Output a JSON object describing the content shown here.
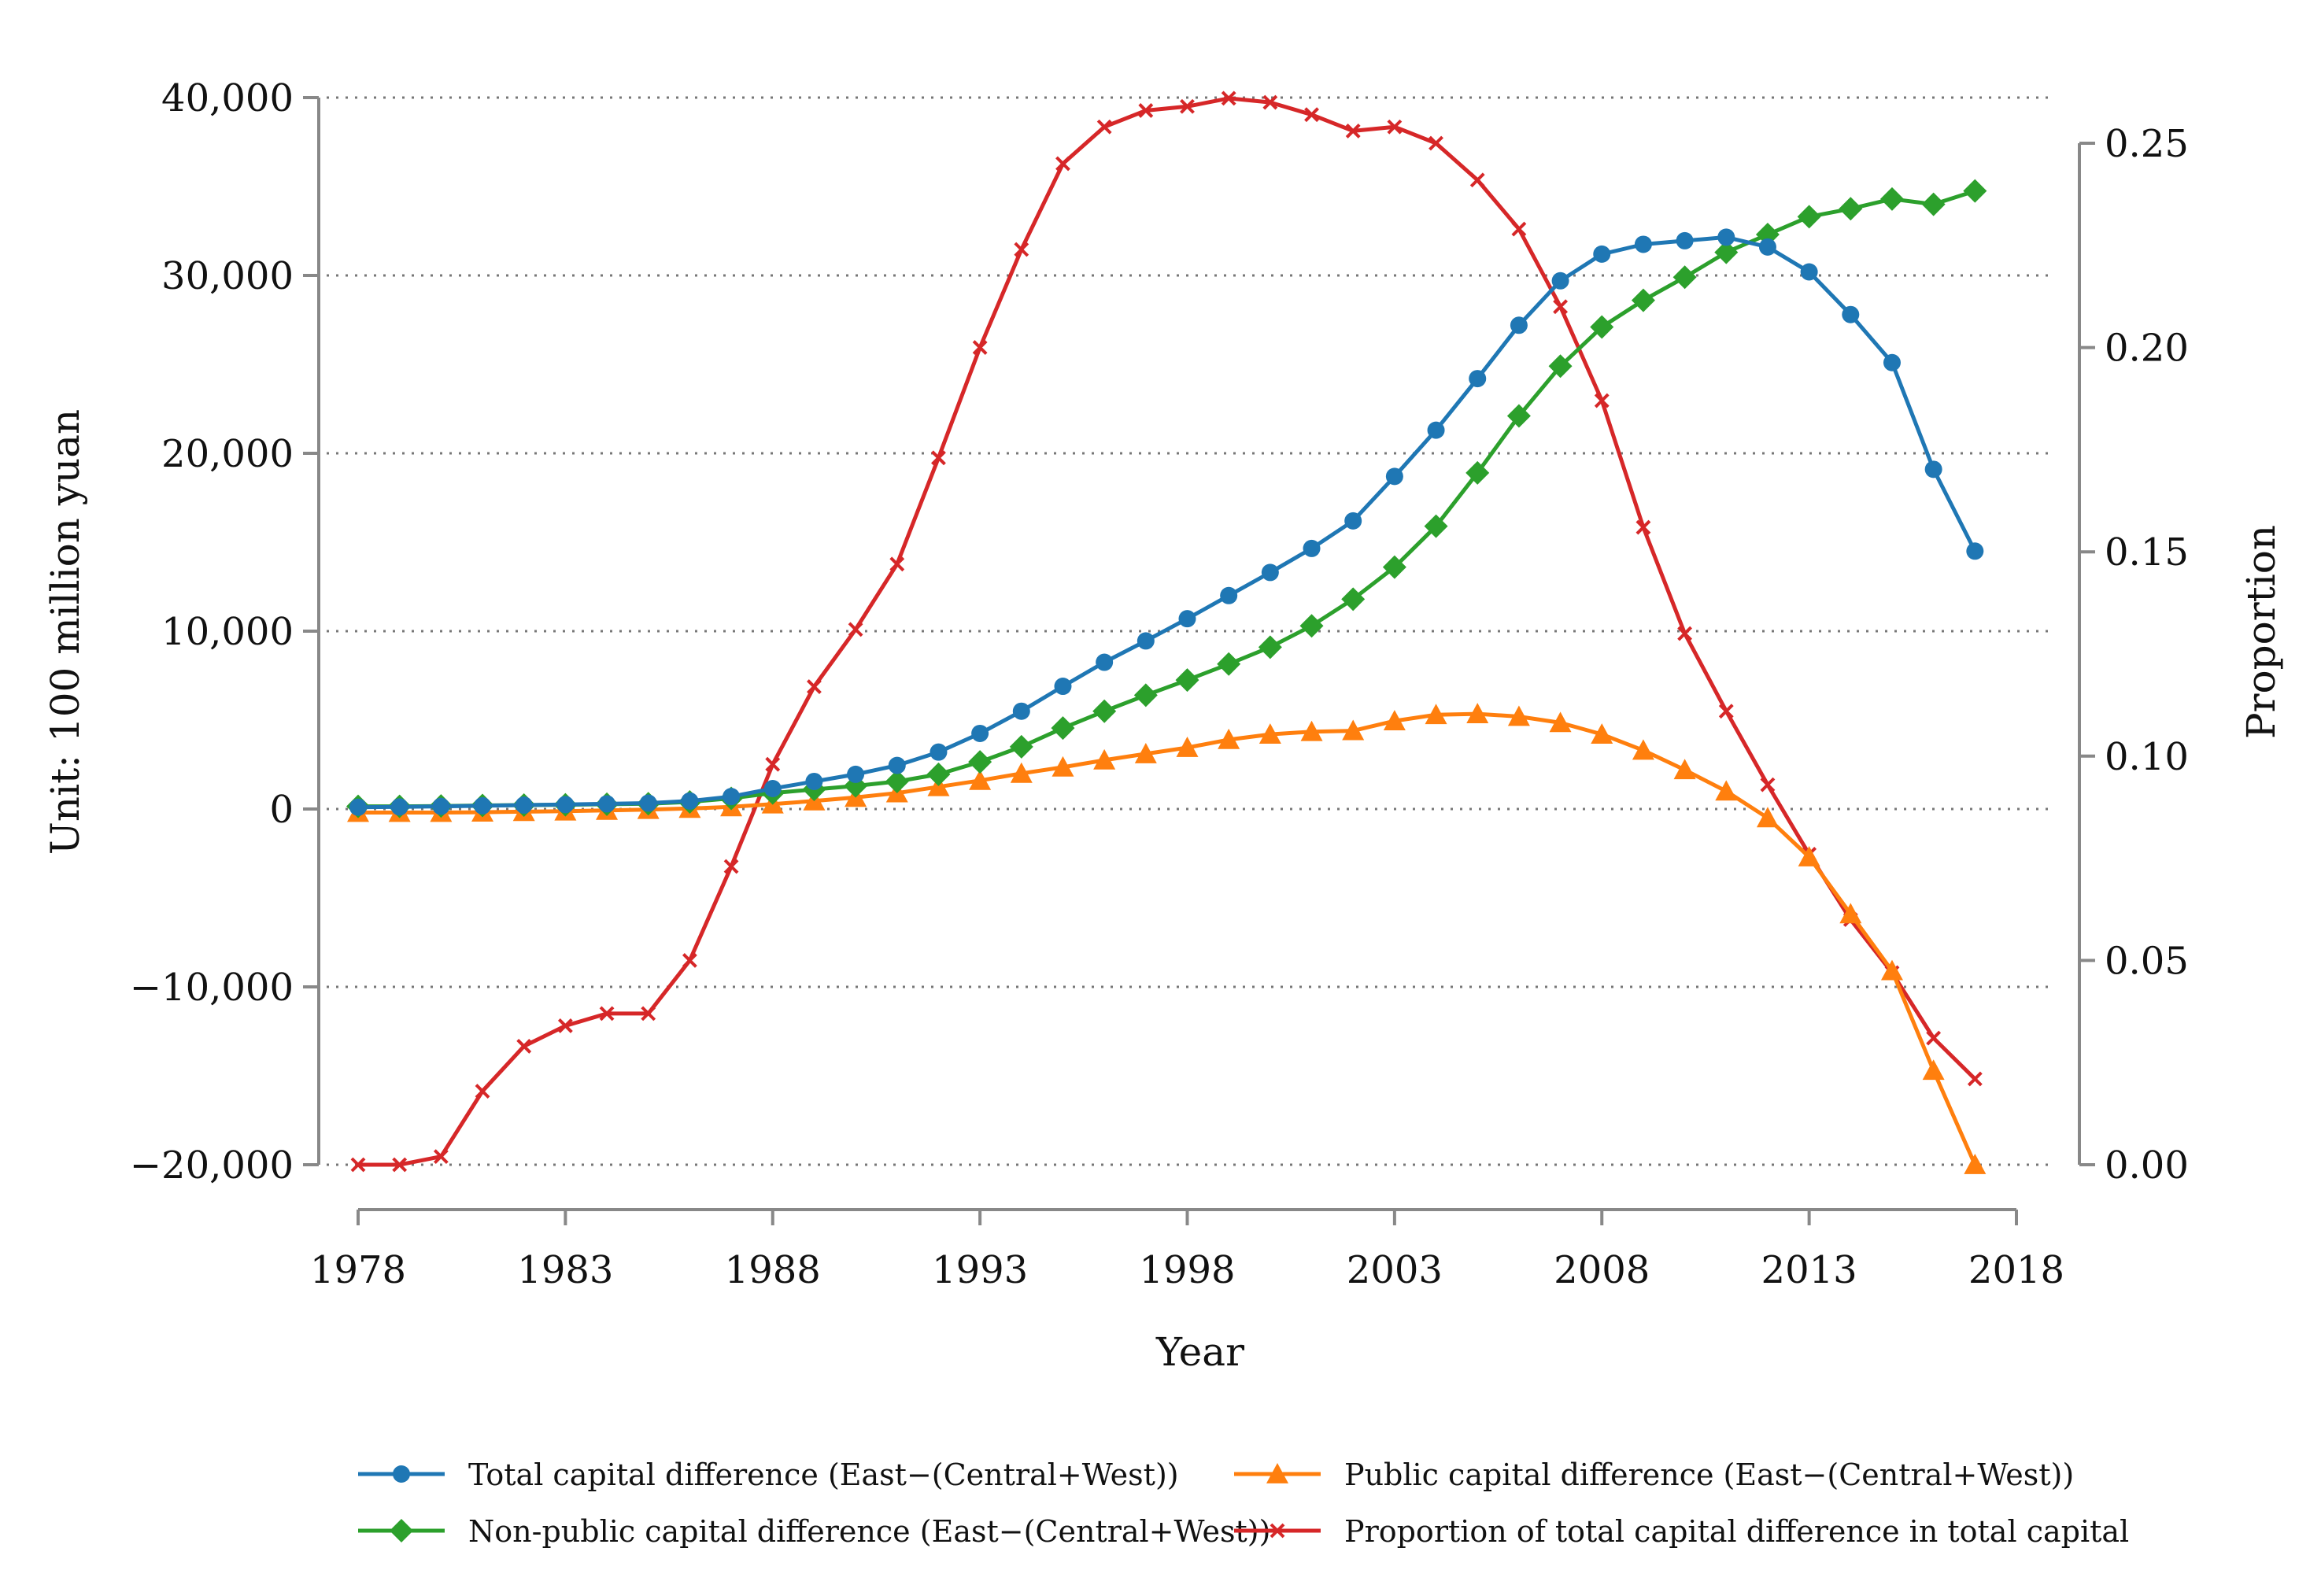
{
  "chart_data": {
    "type": "line",
    "title": "",
    "xlabel": "Year",
    "ylabel": "Unit: 100 million yuan",
    "y2label": "Proportion",
    "xlim": [
      1978,
      2018
    ],
    "ylim": [
      -20000,
      40000
    ],
    "y2lim": [
      0.0,
      0.262
    ],
    "xticks": [
      1978,
      1983,
      1988,
      1993,
      1998,
      2003,
      2008,
      2013,
      2018
    ],
    "xtick_labels": [
      "1978",
      "1983",
      "1988",
      "1993",
      "1998",
      "2003",
      "2008",
      "2013",
      "2018"
    ],
    "yticks": [
      -20000,
      -10000,
      0,
      10000,
      20000,
      30000,
      40000
    ],
    "ytick_labels": [
      "−20,000",
      "−10,000",
      "0",
      "10,000",
      "20,000",
      "30,000",
      "40,000"
    ],
    "y2ticks": [
      0.0,
      0.05,
      0.1,
      0.15,
      0.2,
      0.25
    ],
    "y2tick_labels": [
      "0.00",
      "0.05",
      "0.10",
      "0.15",
      "0.20",
      "0.25"
    ],
    "grid": "horizontal dotted",
    "legend_position": "bottom",
    "x": [
      1978,
      1979,
      1980,
      1981,
      1982,
      1983,
      1984,
      1985,
      1986,
      1987,
      1988,
      1989,
      1990,
      1991,
      1992,
      1993,
      1994,
      1995,
      1996,
      1997,
      1998,
      1999,
      2000,
      2001,
      2002,
      2003,
      2004,
      2005,
      2006,
      2007,
      2008,
      2009,
      2010,
      2011,
      2012,
      2013,
      2014,
      2015,
      2016,
      2017
    ],
    "series": [
      {
        "name": "Total capital difference (East−(Central+West))",
        "axis": "left",
        "color": "#1f77b4",
        "marker": "circle",
        "values": [
          100,
          120,
          150,
          180,
          220,
          250,
          290,
          330,
          450,
          700,
          1150,
          1550,
          1950,
          2450,
          3200,
          4250,
          5500,
          6900,
          8250,
          9450,
          10700,
          12000,
          13300,
          14650,
          16200,
          18700,
          21300,
          24200,
          27200,
          29700,
          31200,
          31750,
          31950,
          32150,
          31600,
          30200,
          27800,
          25100,
          19100,
          14500
        ]
      },
      {
        "name": "Public capital difference (East−(Central+West))",
        "axis": "left",
        "color": "#ff7f0e",
        "marker": "triangle",
        "values": [
          -200,
          -200,
          -200,
          -180,
          -150,
          -120,
          -80,
          -30,
          30,
          120,
          280,
          450,
          650,
          900,
          1250,
          1600,
          2000,
          2350,
          2750,
          3100,
          3450,
          3900,
          4200,
          4350,
          4400,
          4950,
          5300,
          5350,
          5200,
          4850,
          4200,
          3300,
          2200,
          1000,
          -500,
          -2700,
          -5900,
          -9100,
          -14700,
          -20000
        ]
      },
      {
        "name": "Non-public capital difference (East−(Central+West))",
        "axis": "left",
        "color": "#2ca02c",
        "marker": "diamond",
        "values": [
          150,
          150,
          170,
          200,
          220,
          240,
          270,
          300,
          400,
          600,
          900,
          1100,
          1300,
          1550,
          1950,
          2650,
          3500,
          4550,
          5500,
          6400,
          7250,
          8150,
          9100,
          10300,
          11800,
          13600,
          15900,
          18900,
          22100,
          24900,
          27100,
          28600,
          29900,
          31300,
          32300,
          33300,
          33750,
          34300,
          34000,
          34750
        ]
      },
      {
        "name": "Proportion of total capital difference in total capital",
        "axis": "right",
        "color": "#d62728",
        "marker": "x",
        "values": [
          0.0,
          0.0,
          0.002,
          0.018,
          0.029,
          0.034,
          0.037,
          0.037,
          0.05,
          0.073,
          0.098,
          0.117,
          0.131,
          0.147,
          0.173,
          0.2,
          0.224,
          0.245,
          0.254,
          0.258,
          0.259,
          0.261,
          0.26,
          0.257,
          0.253,
          0.254,
          0.25,
          0.241,
          0.229,
          0.21,
          0.187,
          0.156,
          0.13,
          0.111,
          0.093,
          0.076,
          0.06,
          0.047,
          0.031,
          0.021
        ]
      }
    ]
  },
  "legend": {
    "items": [
      "Total capital difference (East−(Central+West))",
      "Public capital difference (East−(Central+West))",
      "Non-public capital difference (East−(Central+West))",
      "Proportion of total capital difference in total capital"
    ]
  }
}
